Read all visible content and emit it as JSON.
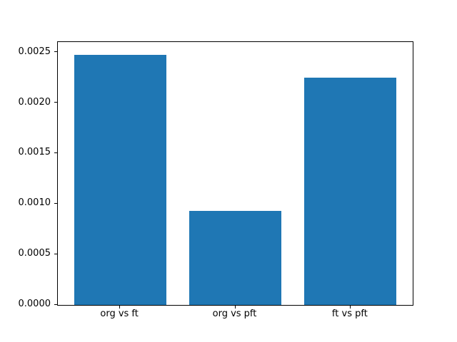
{
  "figure": {
    "background": "#ffffff",
    "frame_color": "#000000"
  },
  "chart_data": {
    "type": "bar",
    "title": "",
    "xlabel": "",
    "ylabel": "",
    "categories": [
      "org vs ft",
      "org vs pft",
      "ft vs pft"
    ],
    "values": [
      0.00248,
      0.00093,
      0.00225
    ],
    "bar_color": "#1f77b4",
    "bar_width": 0.8,
    "xlim": [
      -0.54,
      2.54
    ],
    "ylim": [
      0,
      0.002604
    ],
    "yticks": [
      {
        "value": 0.0,
        "label": "0.0000"
      },
      {
        "value": 0.0005,
        "label": "0.0005"
      },
      {
        "value": 0.001,
        "label": "0.0010"
      },
      {
        "value": 0.0015,
        "label": "0.0015"
      },
      {
        "value": 0.002,
        "label": "0.0020"
      },
      {
        "value": 0.0025,
        "label": "0.0025"
      }
    ],
    "grid": false,
    "legend": "none"
  }
}
